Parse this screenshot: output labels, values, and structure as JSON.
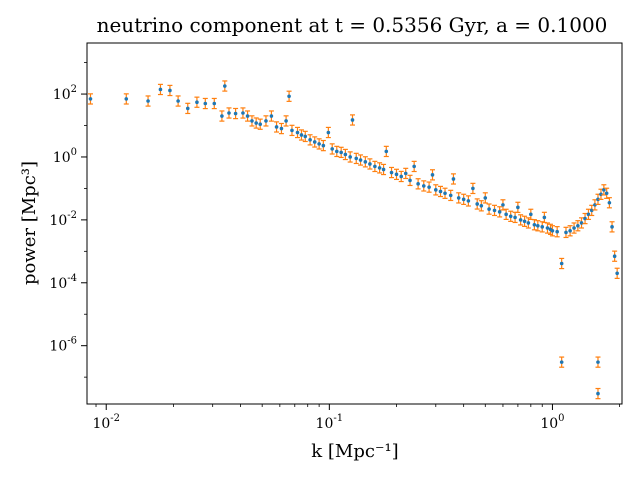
{
  "chart_data": {
    "type": "scatter",
    "title": "neutrino component at t = 0.5356 Gyr, a = 0.1000",
    "xlabel": "k [Mpc⁻¹]",
    "ylabel": "power [Mpc³]",
    "xscale": "log",
    "yscale": "log",
    "xlim": [
      0.0082,
      2.05
    ],
    "ylim": [
      1.4e-08,
      4200.0
    ],
    "grid": false,
    "x_ticks": [
      {
        "value": 0.01,
        "label": "10",
        "exp": "-2"
      },
      {
        "value": 0.1,
        "label": "10",
        "exp": "-1"
      },
      {
        "value": 1,
        "label": "10",
        "exp": "0"
      }
    ],
    "y_ticks": [
      {
        "value": 100,
        "label": "10",
        "exp": "2"
      },
      {
        "value": 1,
        "label": "10",
        "exp": "0"
      },
      {
        "value": 0.01,
        "label": "10",
        "exp": "-2"
      },
      {
        "value": 0.0001,
        "label": "10",
        "exp": "-4"
      },
      {
        "value": 1e-06,
        "label": "10",
        "exp": "-6"
      }
    ],
    "colors": {
      "points": "#1f77b4",
      "errorbars": "#ff7f0e"
    },
    "series": [
      {
        "values": [
          [
            0.0085,
            70
          ],
          [
            0.0123,
            70
          ],
          [
            0.0154,
            60
          ],
          [
            0.0175,
            140
          ],
          [
            0.0193,
            130
          ],
          [
            0.021,
            60
          ],
          [
            0.0232,
            35
          ],
          [
            0.0255,
            55
          ],
          [
            0.0278,
            50
          ],
          [
            0.0305,
            50
          ],
          [
            0.033,
            20
          ],
          [
            0.034,
            180
          ],
          [
            0.0355,
            25
          ],
          [
            0.038,
            24
          ],
          [
            0.041,
            25
          ],
          [
            0.043,
            20
          ],
          [
            0.045,
            14
          ],
          [
            0.047,
            12
          ],
          [
            0.049,
            11
          ],
          [
            0.052,
            14
          ],
          [
            0.055,
            20
          ],
          [
            0.058,
            9
          ],
          [
            0.061,
            8
          ],
          [
            0.064,
            14
          ],
          [
            0.066,
            85
          ],
          [
            0.068,
            7
          ],
          [
            0.072,
            6
          ],
          [
            0.075,
            5
          ],
          [
            0.078,
            4.5
          ],
          [
            0.082,
            3.5
          ],
          [
            0.086,
            3.0
          ],
          [
            0.09,
            2.6
          ],
          [
            0.094,
            2.3
          ],
          [
            0.099,
            6
          ],
          [
            0.103,
            1.8
          ],
          [
            0.108,
            1.5
          ],
          [
            0.113,
            1.4
          ],
          [
            0.118,
            1.2
          ],
          [
            0.124,
            1.0
          ],
          [
            0.127,
            15
          ],
          [
            0.132,
            0.9
          ],
          [
            0.138,
            0.8
          ],
          [
            0.145,
            0.7
          ],
          [
            0.152,
            0.6
          ],
          [
            0.16,
            0.5
          ],
          [
            0.168,
            0.45
          ],
          [
            0.175,
            0.4
          ],
          [
            0.18,
            1.5
          ],
          [
            0.19,
            0.32
          ],
          [
            0.2,
            0.28
          ],
          [
            0.21,
            0.24
          ],
          [
            0.22,
            0.3
          ],
          [
            0.23,
            0.18
          ],
          [
            0.24,
            0.5
          ],
          [
            0.25,
            0.14
          ],
          [
            0.265,
            0.12
          ],
          [
            0.28,
            0.11
          ],
          [
            0.29,
            0.27
          ],
          [
            0.3,
            0.09
          ],
          [
            0.315,
            0.08
          ],
          [
            0.33,
            0.07
          ],
          [
            0.35,
            0.06
          ],
          [
            0.36,
            0.2
          ],
          [
            0.38,
            0.05
          ],
          [
            0.4,
            0.045
          ],
          [
            0.42,
            0.04
          ],
          [
            0.44,
            0.1
          ],
          [
            0.46,
            0.032
          ],
          [
            0.48,
            0.028
          ],
          [
            0.5,
            0.05
          ],
          [
            0.52,
            0.022
          ],
          [
            0.55,
            0.02
          ],
          [
            0.58,
            0.018
          ],
          [
            0.6,
            0.03
          ],
          [
            0.62,
            0.015
          ],
          [
            0.65,
            0.013
          ],
          [
            0.68,
            0.012
          ],
          [
            0.7,
            0.025
          ],
          [
            0.72,
            0.01
          ],
          [
            0.75,
            0.009
          ],
          [
            0.78,
            0.008
          ],
          [
            0.8,
            0.015
          ],
          [
            0.83,
            0.007
          ],
          [
            0.86,
            0.0065
          ],
          [
            0.9,
            0.006
          ],
          [
            0.92,
            0.012
          ],
          [
            0.95,
            0.0055
          ],
          [
            0.98,
            0.005
          ],
          [
            1.0,
            0.0045
          ],
          [
            1.05,
            0.0042
          ],
          [
            1.1,
            0.00041
          ],
          [
            1.15,
            0.004
          ],
          [
            1.2,
            0.0045
          ],
          [
            1.25,
            0.0055
          ],
          [
            1.3,
            0.0065
          ],
          [
            1.35,
            0.008
          ],
          [
            1.4,
            0.011
          ],
          [
            1.45,
            0.015
          ],
          [
            1.5,
            0.02
          ],
          [
            1.55,
            0.03
          ],
          [
            1.6,
            0.045
          ],
          [
            1.65,
            0.065
          ],
          [
            1.7,
            0.09
          ],
          [
            1.75,
            0.07
          ],
          [
            1.8,
            0.035
          ],
          [
            1.85,
            0.006
          ],
          [
            1.9,
            0.0007
          ],
          [
            1.95,
            0.0002
          ],
          [
            1.6,
            3e-07
          ],
          [
            1.1,
            3e-07
          ],
          [
            1.6,
            3e-08
          ]
        ]
      }
    ]
  }
}
